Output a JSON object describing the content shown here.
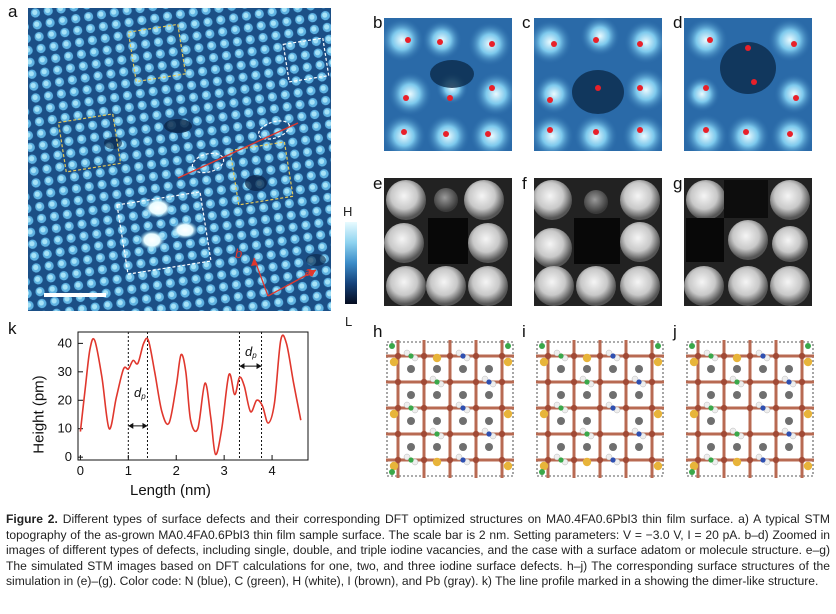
{
  "panels": {
    "a": "a",
    "b": "b",
    "c": "c",
    "d": "d",
    "e": "e",
    "f": "f",
    "g": "g",
    "h": "h",
    "i": "i",
    "j": "j",
    "k": "k"
  },
  "direction_labels": {
    "a": "a",
    "b": "b"
  },
  "colorbar": {
    "high": "H",
    "low": "L"
  },
  "profile": {
    "ylabel": "Height (pm)",
    "xlabel": "Length (nm)",
    "dp": "d",
    "dp_sub": "p"
  },
  "chart_data": {
    "type": "line",
    "title": "",
    "xlabel": "Length (nm)",
    "ylabel": "Height (pm)",
    "xlim": [
      -0.05,
      4.75
    ],
    "ylim": [
      -1,
      44
    ],
    "xticks": [
      0,
      1,
      2,
      3,
      4
    ],
    "yticks": [
      0,
      10,
      20,
      30,
      40
    ],
    "x": [
      0,
      0.1,
      0.2,
      0.3,
      0.45,
      0.6,
      0.75,
      0.9,
      1.0,
      1.1,
      1.2,
      1.32,
      1.42,
      1.55,
      1.7,
      1.85,
      2.0,
      2.1,
      2.2,
      2.3,
      2.45,
      2.6,
      2.72,
      2.82,
      2.95,
      3.1,
      3.22,
      3.32,
      3.42,
      3.55,
      3.68,
      3.8,
      3.92,
      4.05,
      4.18,
      4.3,
      4.45,
      4.6
    ],
    "values": [
      9,
      24,
      38,
      41,
      28,
      10,
      21,
      31,
      31,
      34,
      33,
      40,
      41,
      30,
      16,
      12,
      25,
      36,
      30,
      13,
      10,
      26,
      14,
      1,
      10,
      29,
      22,
      28,
      25,
      16,
      20,
      18,
      12,
      19,
      41,
      40,
      26,
      13
    ],
    "markers_nm": [
      1.0,
      1.4,
      3.32,
      3.78
    ]
  },
  "caption": {
    "fig": "Figure 2.",
    "text": " Different types of surface defects and their corresponding DFT optimized structures on MA0.4FA0.6PbI3 thin film surface. a) A typical STM topography of the as-grown MA0.4FA0.6PbI3 thin film sample surface. The scale bar is 2 nm. Setting parameters: V = −3.0 V, I = 20 pA. b–d) Zoomed in images of different types of defects, including single, double, and triple iodine vacancies, and the case with a surface adatom or molecule structure. e–g) The simulated STM images based on DFT calculations for one, two, and three iodine surface defects. h–j) The corresponding surface structures of the simulation in (e)–(g). Color code: N (blue), C (green), H (white), I (brown), and Pb (gray). k) The line profile marked in a showing the dimer-like structure."
  },
  "colors": {
    "profile_line": "#e0372d",
    "stm_dark": "#0b2a4a",
    "stm_light": "#9fe0f5",
    "vacancy_marker": "#e8202a",
    "frame_yellow": "#e2c95a",
    "frame_white": "#ffffff"
  }
}
